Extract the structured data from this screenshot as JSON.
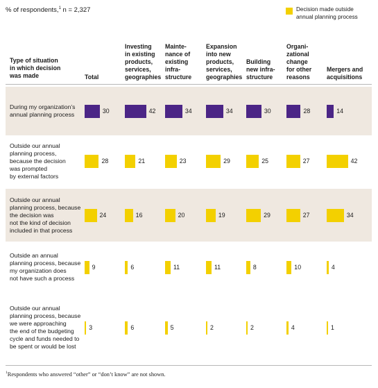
{
  "subtitle": {
    "text": "% of respondents,",
    "sup": "1",
    "n": " n = 2,327"
  },
  "legend": {
    "label_line1": "Decision made outside",
    "label_line2": "annual planning process",
    "color": "#f3d000"
  },
  "footnote": {
    "sup": "1",
    "text": "Respondents who answered “other” or “don’t know” are not shown."
  },
  "colors": {
    "planned": "#4b2586",
    "outside": "#f3d000",
    "band": "#efe8e0"
  },
  "chart_data": {
    "type": "bar",
    "row_header": [
      "Type of situation",
      "in which decision",
      "was made"
    ],
    "categories": [
      [
        "Total"
      ],
      [
        "Investing",
        "in existing",
        "products,",
        "services,",
        "geographies"
      ],
      [
        "Mainte-",
        "nance of",
        "existing",
        "infra-",
        "structure"
      ],
      [
        "Expansion",
        "into new",
        "products,",
        "services,",
        "geographies"
      ],
      [
        "Building",
        "new infra-",
        "structure"
      ],
      [
        "Organi-",
        "zational",
        "change",
        "for other",
        "reasons"
      ],
      [
        "Mergers and",
        "acquisitions"
      ]
    ],
    "rows": [
      {
        "label": [
          "During my organization’s",
          "annual planning process"
        ],
        "planned": true,
        "values": [
          30,
          42,
          34,
          34,
          30,
          28,
          14
        ]
      },
      {
        "label": [
          "Outside our annual",
          "planning process,",
          "because the decision",
          "was prompted",
          "by external factors"
        ],
        "planned": false,
        "values": [
          28,
          21,
          23,
          29,
          25,
          27,
          42
        ]
      },
      {
        "label": [
          "Outside our annual",
          "planning process, because",
          "the decision was",
          "not the kind of decision",
          "included in that process"
        ],
        "planned": false,
        "values": [
          24,
          16,
          20,
          19,
          29,
          27,
          34
        ]
      },
      {
        "label": [
          "Outside an annual",
          "planning process, because",
          "my organization does",
          "not have such a process"
        ],
        "planned": false,
        "values": [
          9,
          6,
          11,
          11,
          8,
          10,
          4
        ]
      },
      {
        "label": [
          "Outside our annual",
          "planning process, because",
          "we were approaching",
          "the end of the budgeting",
          "cycle and funds needed to",
          "be spent or would be lost"
        ],
        "planned": false,
        "values": [
          3,
          6,
          5,
          2,
          2,
          4,
          1
        ]
      }
    ]
  }
}
